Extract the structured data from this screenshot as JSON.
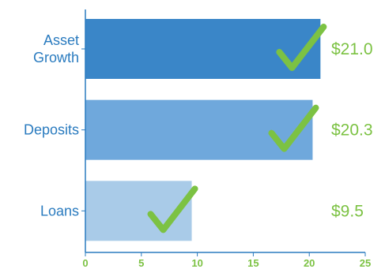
{
  "chart_data": {
    "type": "bar",
    "orientation": "horizontal",
    "categories": [
      {
        "lines": [
          "Asset",
          "Growth"
        ]
      },
      {
        "lines": [
          "Deposits"
        ]
      },
      {
        "lines": [
          "Loans"
        ]
      }
    ],
    "values": [
      21.0,
      20.3,
      9.5
    ],
    "value_labels": [
      "$21.0",
      "$20.3",
      "$9.5"
    ],
    "xlim": [
      0,
      25
    ],
    "x_ticks": [
      0,
      5,
      10,
      15,
      20,
      25
    ],
    "grid": false,
    "bar_colors": [
      "#3a86c8",
      "#6fa8dc",
      "#a9cbe8"
    ],
    "axis_color": "#2a7bbf",
    "tick_color": "#7cc243",
    "check_color": "#7cc243",
    "check_icon": "checkmark-icon"
  }
}
